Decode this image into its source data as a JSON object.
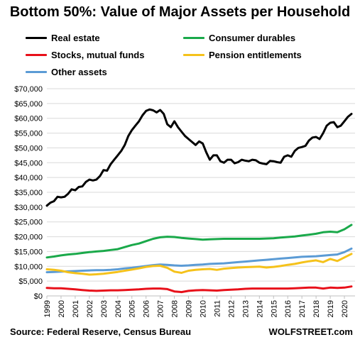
{
  "chart_data": {
    "type": "line",
    "title": "Bottom 50%: Value of Major Assets per Household",
    "xlabel": "",
    "ylabel": "",
    "ylim": [
      0,
      70000
    ],
    "y_ticks": [
      0,
      5000,
      10000,
      15000,
      20000,
      25000,
      30000,
      35000,
      40000,
      45000,
      50000,
      55000,
      60000,
      65000,
      70000
    ],
    "y_tick_labels": [
      "$0",
      "$5,000",
      "$10,000",
      "$15,000",
      "$20,000",
      "$25,000",
      "$30,000",
      "$35,000",
      "$40,000",
      "$45,000",
      "$50,000",
      "$55,000",
      "$60,000",
      "$65,000",
      "$70,000"
    ],
    "x_tick_labels": [
      "1999",
      "2000",
      "2001",
      "2002",
      "2003",
      "2004",
      "2005",
      "2006",
      "2007",
      "2008",
      "2009",
      "2010",
      "2011",
      "2012",
      "2013",
      "2014",
      "2015",
      "2016",
      "2017",
      "2018",
      "2019",
      "2020"
    ],
    "x_range": [
      1999.0,
      2020.75
    ],
    "grid": true,
    "legend_placement": "top",
    "series": [
      {
        "name": "Real estate",
        "color": "#000000",
        "points": [
          [
            1999.0,
            30500
          ],
          [
            1999.25,
            31500
          ],
          [
            1999.5,
            32000
          ],
          [
            1999.75,
            33500
          ],
          [
            2000.0,
            33300
          ],
          [
            2000.25,
            33500
          ],
          [
            2000.5,
            34500
          ],
          [
            2000.75,
            36000
          ],
          [
            2001.0,
            35700
          ],
          [
            2001.25,
            36800
          ],
          [
            2001.5,
            37000
          ],
          [
            2001.75,
            38500
          ],
          [
            2002.0,
            39300
          ],
          [
            2002.25,
            39000
          ],
          [
            2002.5,
            39300
          ],
          [
            2002.75,
            40500
          ],
          [
            2003.0,
            42500
          ],
          [
            2003.25,
            42300
          ],
          [
            2003.5,
            44500
          ],
          [
            2003.75,
            46000
          ],
          [
            2004.0,
            47500
          ],
          [
            2004.25,
            49000
          ],
          [
            2004.5,
            51000
          ],
          [
            2004.75,
            54000
          ],
          [
            2005.0,
            56000
          ],
          [
            2005.25,
            57500
          ],
          [
            2005.5,
            59000
          ],
          [
            2005.75,
            61000
          ],
          [
            2006.0,
            62500
          ],
          [
            2006.25,
            63000
          ],
          [
            2006.5,
            62700
          ],
          [
            2006.75,
            62000
          ],
          [
            2007.0,
            62800
          ],
          [
            2007.25,
            61500
          ],
          [
            2007.5,
            58000
          ],
          [
            2007.75,
            57000
          ],
          [
            2008.0,
            59000
          ],
          [
            2008.25,
            57000
          ],
          [
            2008.5,
            55500
          ],
          [
            2008.75,
            54000
          ],
          [
            2009.0,
            53000
          ],
          [
            2009.25,
            52000
          ],
          [
            2009.5,
            51000
          ],
          [
            2009.75,
            52200
          ],
          [
            2010.0,
            51500
          ],
          [
            2010.25,
            48500
          ],
          [
            2010.5,
            46000
          ],
          [
            2010.75,
            47500
          ],
          [
            2011.0,
            47500
          ],
          [
            2011.25,
            45500
          ],
          [
            2011.5,
            45000
          ],
          [
            2011.75,
            46000
          ],
          [
            2012.0,
            46000
          ],
          [
            2012.25,
            44800
          ],
          [
            2012.5,
            45200
          ],
          [
            2012.75,
            46000
          ],
          [
            2013.0,
            45700
          ],
          [
            2013.25,
            45500
          ],
          [
            2013.5,
            46000
          ],
          [
            2013.75,
            45800
          ],
          [
            2014.0,
            45000
          ],
          [
            2014.25,
            44700
          ],
          [
            2014.5,
            44500
          ],
          [
            2014.75,
            45600
          ],
          [
            2015.0,
            45500
          ],
          [
            2015.25,
            45200
          ],
          [
            2015.5,
            45000
          ],
          [
            2015.75,
            47000
          ],
          [
            2016.0,
            47500
          ],
          [
            2016.25,
            47000
          ],
          [
            2016.5,
            49000
          ],
          [
            2016.75,
            50000
          ],
          [
            2017.0,
            50300
          ],
          [
            2017.25,
            50700
          ],
          [
            2017.5,
            52500
          ],
          [
            2017.75,
            53500
          ],
          [
            2018.0,
            53700
          ],
          [
            2018.25,
            53000
          ],
          [
            2018.5,
            55000
          ],
          [
            2018.75,
            57500
          ],
          [
            2019.0,
            58500
          ],
          [
            2019.25,
            58700
          ],
          [
            2019.5,
            57000
          ],
          [
            2019.75,
            57500
          ],
          [
            2020.0,
            59000
          ],
          [
            2020.25,
            60500
          ],
          [
            2020.5,
            61500
          ]
        ]
      },
      {
        "name": "Consumer durables",
        "color": "#1aa94a",
        "points": [
          [
            1999.0,
            13000
          ],
          [
            1999.5,
            13300
          ],
          [
            2000.0,
            13700
          ],
          [
            2000.5,
            14000
          ],
          [
            2001.0,
            14200
          ],
          [
            2001.5,
            14500
          ],
          [
            2002.0,
            14800
          ],
          [
            2002.5,
            15000
          ],
          [
            2003.0,
            15200
          ],
          [
            2003.5,
            15500
          ],
          [
            2004.0,
            15800
          ],
          [
            2004.5,
            16500
          ],
          [
            2005.0,
            17200
          ],
          [
            2005.5,
            17700
          ],
          [
            2006.0,
            18500
          ],
          [
            2006.5,
            19300
          ],
          [
            2007.0,
            19800
          ],
          [
            2007.5,
            20000
          ],
          [
            2008.0,
            19900
          ],
          [
            2008.5,
            19600
          ],
          [
            2009.0,
            19400
          ],
          [
            2009.5,
            19200
          ],
          [
            2010.0,
            19000
          ],
          [
            2010.5,
            19100
          ],
          [
            2011.0,
            19200
          ],
          [
            2011.5,
            19300
          ],
          [
            2012.0,
            19300
          ],
          [
            2012.5,
            19300
          ],
          [
            2013.0,
            19300
          ],
          [
            2013.5,
            19300
          ],
          [
            2014.0,
            19300
          ],
          [
            2014.5,
            19400
          ],
          [
            2015.0,
            19500
          ],
          [
            2015.5,
            19700
          ],
          [
            2016.0,
            19900
          ],
          [
            2016.5,
            20100
          ],
          [
            2017.0,
            20400
          ],
          [
            2017.5,
            20700
          ],
          [
            2018.0,
            21000
          ],
          [
            2018.5,
            21500
          ],
          [
            2019.0,
            21700
          ],
          [
            2019.5,
            21500
          ],
          [
            2020.0,
            22500
          ],
          [
            2020.5,
            24000
          ]
        ]
      },
      {
        "name": "Stocks, mutual funds",
        "color": "#e8101a",
        "points": [
          [
            1999.0,
            2700
          ],
          [
            1999.5,
            2600
          ],
          [
            2000.0,
            2600
          ],
          [
            2000.5,
            2400
          ],
          [
            2001.0,
            2200
          ],
          [
            2001.5,
            2000
          ],
          [
            2002.0,
            1800
          ],
          [
            2002.5,
            1700
          ],
          [
            2003.0,
            1800
          ],
          [
            2003.5,
            1900
          ],
          [
            2004.0,
            1900
          ],
          [
            2004.5,
            2000
          ],
          [
            2005.0,
            2100
          ],
          [
            2005.5,
            2200
          ],
          [
            2006.0,
            2400
          ],
          [
            2006.5,
            2500
          ],
          [
            2007.0,
            2500
          ],
          [
            2007.5,
            2300
          ],
          [
            2008.0,
            1500
          ],
          [
            2008.5,
            1300
          ],
          [
            2009.0,
            1700
          ],
          [
            2009.5,
            1900
          ],
          [
            2010.0,
            2000
          ],
          [
            2010.5,
            1900
          ],
          [
            2011.0,
            1800
          ],
          [
            2011.5,
            2000
          ],
          [
            2012.0,
            2100
          ],
          [
            2012.5,
            2200
          ],
          [
            2013.0,
            2400
          ],
          [
            2013.5,
            2500
          ],
          [
            2014.0,
            2500
          ],
          [
            2014.5,
            2500
          ],
          [
            2015.0,
            2500
          ],
          [
            2015.5,
            2500
          ],
          [
            2016.0,
            2500
          ],
          [
            2016.5,
            2600
          ],
          [
            2017.0,
            2700
          ],
          [
            2017.5,
            2800
          ],
          [
            2018.0,
            2800
          ],
          [
            2018.5,
            2500
          ],
          [
            2019.0,
            2800
          ],
          [
            2019.5,
            2700
          ],
          [
            2020.0,
            2800
          ],
          [
            2020.5,
            3200
          ]
        ]
      },
      {
        "name": "Pension entitlements",
        "color": "#f5c21b",
        "points": [
          [
            1999.0,
            9000
          ],
          [
            1999.5,
            8800
          ],
          [
            2000.0,
            8500
          ],
          [
            2000.5,
            8000
          ],
          [
            2001.0,
            7700
          ],
          [
            2001.5,
            7500
          ],
          [
            2002.0,
            7200
          ],
          [
            2002.5,
            7300
          ],
          [
            2003.0,
            7500
          ],
          [
            2003.5,
            7800
          ],
          [
            2004.0,
            8100
          ],
          [
            2004.5,
            8500
          ],
          [
            2005.0,
            8900
          ],
          [
            2005.5,
            9300
          ],
          [
            2006.0,
            9800
          ],
          [
            2006.5,
            10100
          ],
          [
            2007.0,
            10200
          ],
          [
            2007.5,
            9500
          ],
          [
            2008.0,
            8200
          ],
          [
            2008.5,
            7800
          ],
          [
            2009.0,
            8500
          ],
          [
            2009.5,
            8800
          ],
          [
            2010.0,
            9000
          ],
          [
            2010.5,
            9100
          ],
          [
            2011.0,
            8800
          ],
          [
            2011.5,
            9200
          ],
          [
            2012.0,
            9400
          ],
          [
            2012.5,
            9600
          ],
          [
            2013.0,
            9700
          ],
          [
            2013.5,
            9800
          ],
          [
            2014.0,
            9900
          ],
          [
            2014.5,
            9600
          ],
          [
            2015.0,
            9800
          ],
          [
            2015.5,
            10100
          ],
          [
            2016.0,
            10500
          ],
          [
            2016.5,
            10800
          ],
          [
            2017.0,
            11300
          ],
          [
            2017.5,
            11700
          ],
          [
            2018.0,
            12000
          ],
          [
            2018.5,
            11400
          ],
          [
            2019.0,
            12500
          ],
          [
            2019.5,
            11800
          ],
          [
            2020.0,
            13000
          ],
          [
            2020.5,
            14200
          ]
        ]
      },
      {
        "name": "Other assets",
        "color": "#5b9bd5",
        "points": [
          [
            1999.0,
            8000
          ],
          [
            1999.5,
            8100
          ],
          [
            2000.0,
            8200
          ],
          [
            2000.5,
            8300
          ],
          [
            2001.0,
            8400
          ],
          [
            2001.5,
            8500
          ],
          [
            2002.0,
            8600
          ],
          [
            2002.5,
            8700
          ],
          [
            2003.0,
            8700
          ],
          [
            2003.5,
            8800
          ],
          [
            2004.0,
            9000
          ],
          [
            2004.5,
            9300
          ],
          [
            2005.0,
            9500
          ],
          [
            2005.5,
            9800
          ],
          [
            2006.0,
            10100
          ],
          [
            2006.5,
            10400
          ],
          [
            2007.0,
            10600
          ],
          [
            2007.5,
            10500
          ],
          [
            2008.0,
            10300
          ],
          [
            2008.5,
            10200
          ],
          [
            2009.0,
            10300
          ],
          [
            2009.5,
            10500
          ],
          [
            2010.0,
            10600
          ],
          [
            2010.5,
            10800
          ],
          [
            2011.0,
            10900
          ],
          [
            2011.5,
            11000
          ],
          [
            2012.0,
            11200
          ],
          [
            2012.5,
            11400
          ],
          [
            2013.0,
            11600
          ],
          [
            2013.5,
            11800
          ],
          [
            2014.0,
            12000
          ],
          [
            2014.5,
            12200
          ],
          [
            2015.0,
            12400
          ],
          [
            2015.5,
            12600
          ],
          [
            2016.0,
            12800
          ],
          [
            2016.5,
            13000
          ],
          [
            2017.0,
            13200
          ],
          [
            2017.5,
            13300
          ],
          [
            2018.0,
            13400
          ],
          [
            2018.5,
            13600
          ],
          [
            2019.0,
            13800
          ],
          [
            2019.5,
            14000
          ],
          [
            2020.0,
            14800
          ],
          [
            2020.5,
            16000
          ]
        ]
      }
    ]
  },
  "footer": {
    "source": "Source: Federal Reserve, Census Bureau",
    "brand": "WOLFSTREET.com"
  }
}
